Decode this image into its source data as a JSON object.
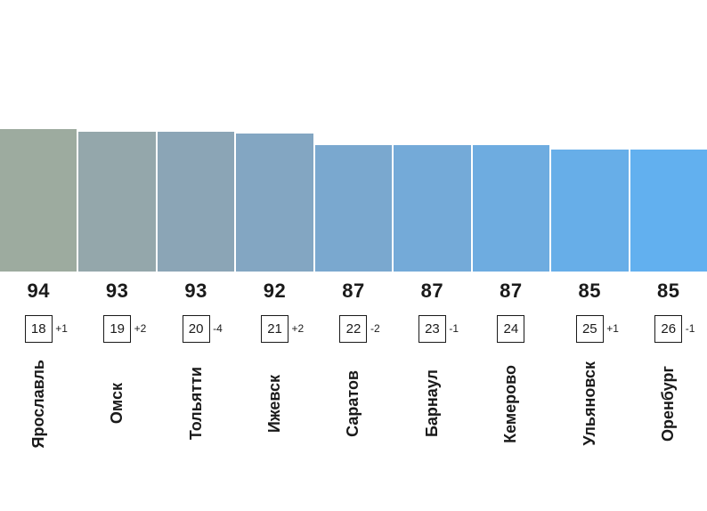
{
  "chart_data": {
    "type": "bar",
    "categories": [
      "Ярославль",
      "Омск",
      "Тольятти",
      "Ижевск",
      "Саратов",
      "Барнаул",
      "Кемерово",
      "Ульяновск",
      "Оренбург"
    ],
    "values": [
      94,
      93,
      93,
      92,
      87,
      87,
      87,
      85,
      85
    ],
    "ranks": [
      18,
      19,
      20,
      21,
      22,
      23,
      24,
      25,
      26
    ],
    "rank_changes": [
      "+1",
      "+2",
      "-4",
      "+2",
      "-2",
      "-1",
      "",
      "+1",
      "-1"
    ],
    "bar_colors": [
      "#9dab9f",
      "#94a7ab",
      "#8ba5b6",
      "#83a6c2",
      "#7aa8cf",
      "#74aad8",
      "#6eace0",
      "#67aee8",
      "#62b0ef"
    ],
    "title": "",
    "xlabel": "",
    "ylabel": "",
    "ylim": [
      0,
      100
    ],
    "legend": "none",
    "grid": false
  },
  "colors": {
    "score_text": "#1a1a1a",
    "box_border": "#1a1a1a",
    "background": "#ffffff"
  }
}
